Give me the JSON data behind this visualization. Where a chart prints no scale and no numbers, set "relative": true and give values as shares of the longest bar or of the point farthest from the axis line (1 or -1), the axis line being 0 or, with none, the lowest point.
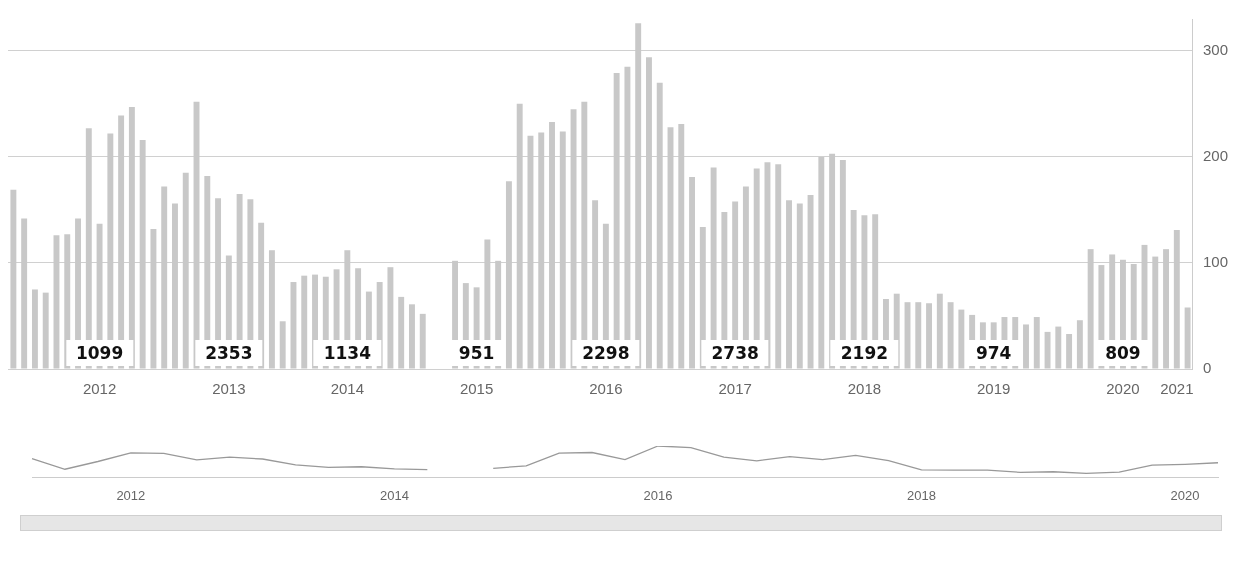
{
  "chart_data": [
    {
      "type": "bar",
      "categories": [
        null,
        null,
        null,
        null,
        null,
        null,
        null,
        null,
        "2012",
        null,
        null,
        null,
        null,
        null,
        null,
        null,
        null,
        null,
        null,
        null,
        "2013",
        null,
        null,
        null,
        null,
        null,
        null,
        null,
        null,
        null,
        null,
        "2014",
        null,
        null,
        null,
        null,
        null,
        null,
        null,
        null,
        null,
        null,
        null,
        "2015",
        null,
        null,
        null,
        null,
        null,
        null,
        null,
        null,
        null,
        null,
        null,
        "2016",
        null,
        null,
        null,
        null,
        null,
        null,
        null,
        null,
        null,
        null,
        null,
        "2017",
        null,
        null,
        null,
        null,
        null,
        null,
        null,
        null,
        null,
        null,
        null,
        "2018",
        null,
        null,
        null,
        null,
        null,
        null,
        null,
        null,
        null,
        null,
        null,
        "2019",
        null,
        null,
        null,
        null,
        null,
        null,
        null,
        null,
        null,
        null,
        null,
        "2020",
        null,
        null,
        null,
        null,
        "2021",
        null
      ],
      "values": [
        169,
        142,
        75,
        72,
        126,
        127,
        142,
        227,
        137,
        222,
        239,
        247,
        216,
        132,
        172,
        156,
        185,
        252,
        182,
        161,
        107,
        165,
        160,
        138,
        112,
        45,
        82,
        88,
        89,
        87,
        94,
        112,
        95,
        73,
        82,
        96,
        68,
        61,
        52,
        null,
        null,
        102,
        81,
        77,
        122,
        102,
        177,
        250,
        220,
        223,
        233,
        224,
        245,
        252,
        159,
        137,
        279,
        285,
        326,
        294,
        270,
        228,
        231,
        181,
        134,
        190,
        148,
        158,
        172,
        189,
        195,
        193,
        159,
        156,
        164,
        200,
        203,
        197,
        150,
        145,
        146,
        66,
        71,
        63,
        63,
        62,
        71,
        63,
        56,
        51,
        44,
        44,
        49,
        49,
        42,
        49,
        35,
        40,
        33,
        46,
        113,
        98,
        108,
        103,
        99,
        117,
        106,
        113,
        131,
        58
      ],
      "color": "#c8c8c8",
      "ylim": [
        0,
        330
      ],
      "yticks": [
        0,
        100,
        200,
        300
      ],
      "grid": "y",
      "legend": false,
      "annotations": [
        {
          "text": "1099",
          "x": "2012",
          "y": 15
        },
        {
          "text": "2353",
          "x": "2013",
          "y": 15
        },
        {
          "text": "1134",
          "x": "2014",
          "y": 15
        },
        {
          "text": "951",
          "x": "2015",
          "y": 15
        },
        {
          "text": "2298",
          "x": "2016",
          "y": 15
        },
        {
          "text": "2738",
          "x": "2017",
          "y": 15
        },
        {
          "text": "2192",
          "x": "2018",
          "y": 15
        },
        {
          "text": "974",
          "x": "2019",
          "y": 15
        },
        {
          "text": "809",
          "x": "2020",
          "y": 15
        }
      ]
    },
    {
      "type": "line",
      "relative": true,
      "legend": false,
      "marker": "none",
      "categories": [
        null,
        null,
        null,
        "2012",
        null,
        null,
        null,
        null,
        null,
        null,
        null,
        "2014",
        null,
        null,
        null,
        null,
        null,
        null,
        null,
        "2016",
        null,
        null,
        null,
        null,
        null,
        null,
        null,
        "2018",
        null,
        null,
        null,
        null,
        null,
        null,
        null,
        "2020",
        null
      ],
      "values": [
        0.59,
        0.25,
        0.5,
        0.78,
        0.76,
        0.55,
        0.64,
        0.58,
        0.39,
        0.31,
        0.33,
        0.26,
        0.24,
        null,
        0.28,
        0.36,
        0.77,
        0.79,
        0.56,
        1,
        0.95,
        0.64,
        0.52,
        0.66,
        0.56,
        0.7,
        0.53,
        0.23,
        0.22,
        0.22,
        0.15,
        0.17,
        0.12,
        0.16,
        0.38,
        0.41,
        0.46
      ],
      "color": "#999999"
    }
  ]
}
